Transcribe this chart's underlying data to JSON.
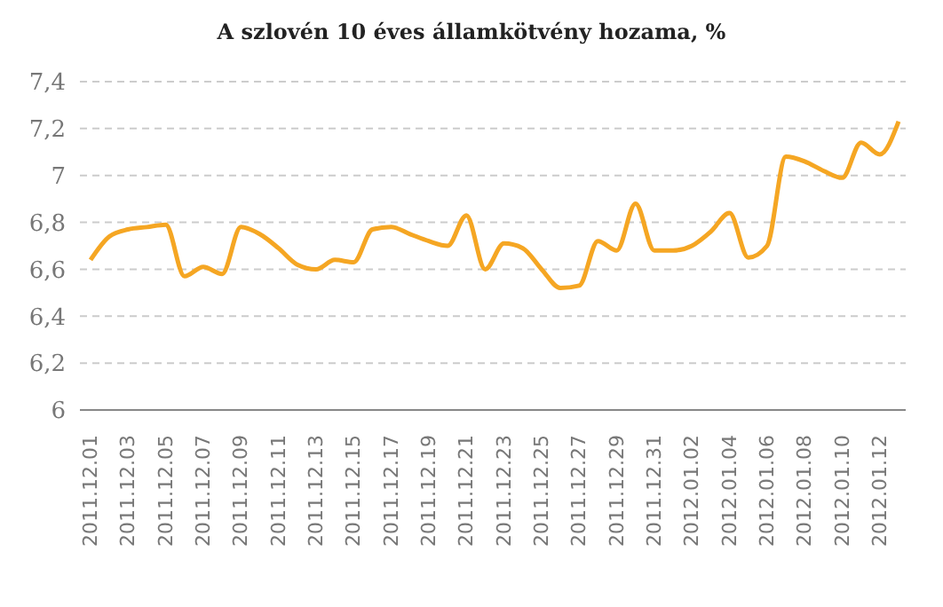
{
  "chart_data": {
    "type": "line",
    "title": "A szlovén 10 éves államkötvény hozama, %",
    "categories": [
      "2011.12.01",
      null,
      "2011.12.03",
      null,
      "2011.12.05",
      null,
      "2011.12.07",
      null,
      "2011.12.09",
      null,
      "2011.12.11",
      null,
      "2011.12.13",
      null,
      "2011.12.15",
      null,
      "2011.12.17",
      null,
      "2011.12.19",
      null,
      "2011.12.21",
      null,
      "2011.12.23",
      null,
      "2011.12.25",
      null,
      "2011.12.27",
      null,
      "2011.12.29",
      null,
      "2011.12.31",
      null,
      "2012.01.02",
      null,
      "2012.01.04",
      null,
      "2012.01.06",
      null,
      "2012.01.08",
      null,
      "2012.01.10",
      null,
      "2012.01.12",
      null
    ],
    "series": [
      {
        "color": "#f5a623",
        "values": [
          6.64,
          6.74,
          6.77,
          6.78,
          6.79,
          6.57,
          6.61,
          6.58,
          6.78,
          6.75,
          6.69,
          6.62,
          6.6,
          6.64,
          6.63,
          6.77,
          6.78,
          6.75,
          6.72,
          6.7,
          6.83,
          6.6,
          6.71,
          6.69,
          6.6,
          6.52,
          6.53,
          6.72,
          6.68,
          6.88,
          6.68,
          6.68,
          6.7,
          6.76,
          6.84,
          6.65,
          6.7,
          7.08,
          7.06,
          7.02,
          6.99,
          7.14,
          7.09,
          7.23
        ]
      }
    ],
    "ylim": [
      6,
      7.4
    ],
    "yticks": [
      6,
      {
        "value": 6.2,
        "label": "6,2"
      },
      {
        "value": 6.4,
        "label": "6,4"
      },
      {
        "value": 6.6,
        "label": "6,6"
      },
      {
        "value": 6.8,
        "label": "6,8"
      },
      7,
      {
        "value": 7.2,
        "label": "7,2"
      },
      {
        "value": 7.4,
        "label": "7,4"
      }
    ],
    "grid": "y",
    "legend": false,
    "marker": "none",
    "line_style": "solid"
  }
}
